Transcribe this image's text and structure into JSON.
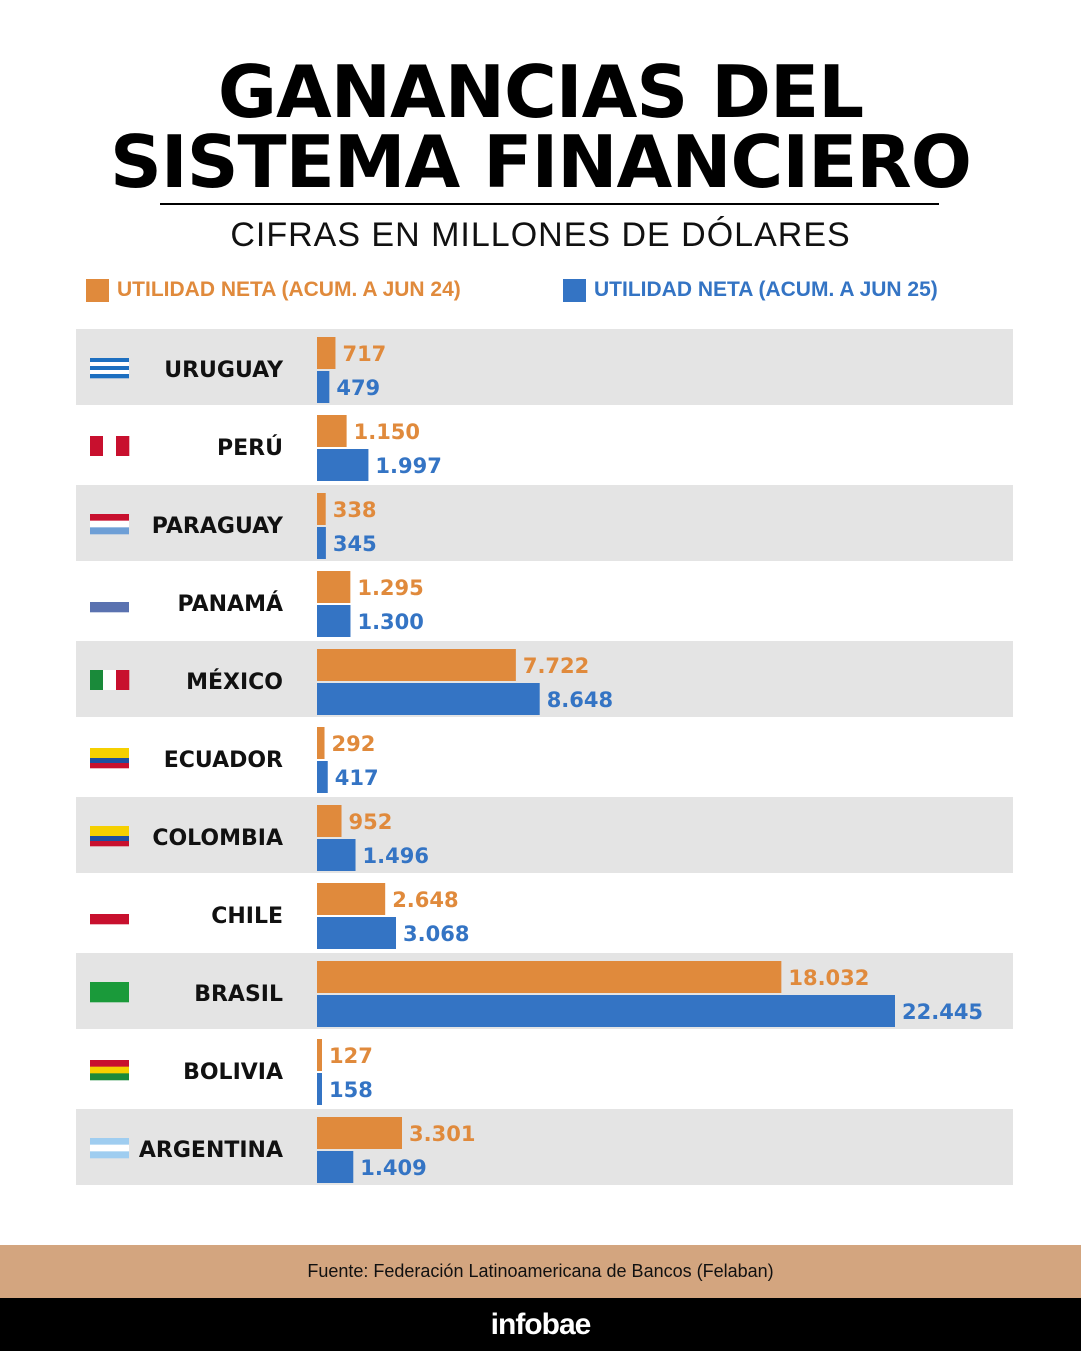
{
  "title_line1": "GANANCIAS DEL",
  "title_line2": "SISTEMA FINANCIERO",
  "subtitle": "CIFRAS EN MILLONES DE DÓLARES",
  "source": "Fuente: Federación Latinoamericana de Bancos (Felaban)",
  "brand": "infobae",
  "colors": {
    "orange": "#e08a3c",
    "blue": "#3474c4",
    "row_shade": "#e4e4e4"
  },
  "chart_data": {
    "type": "bar",
    "orientation": "horizontal",
    "legend_position": "top",
    "grid": false,
    "categories": [
      "URUGUAY",
      "PERÚ",
      "PARAGUAY",
      "PANAMÁ",
      "MÉXICO",
      "ECUADOR",
      "COLOMBIA",
      "CHILE",
      "BRASIL",
      "BOLIVIA",
      "ARGENTINA"
    ],
    "series": [
      {
        "name": "UTILIDAD NETA (ACUM. A JUN 24)",
        "color": "#e08a3c",
        "values": [
          717,
          1150,
          338,
          1295,
          7722,
          292,
          952,
          2648,
          18032,
          127,
          3301
        ],
        "labels": [
          "717",
          "1.150",
          "338",
          "1.295",
          "7.722",
          "292",
          "952",
          "2.648",
          "18.032",
          "127",
          "3.301"
        ]
      },
      {
        "name": "UTILIDAD NETA (ACUM. A JUN 25)",
        "color": "#3474c4",
        "values": [
          479,
          1997,
          345,
          1300,
          8648,
          417,
          1496,
          3068,
          22445,
          158,
          1409
        ],
        "labels": [
          "479",
          "1.997",
          "345",
          "1.300",
          "8.648",
          "417",
          "1.496",
          "3.068",
          "22.445",
          "158",
          "1.409"
        ]
      }
    ],
    "flags": [
      {
        "dir": "h",
        "stripes": [
          "#1d6fc0",
          "#ffffff",
          "#1d6fc0",
          "#ffffff",
          "#1d6fc0"
        ]
      },
      {
        "dir": "v",
        "stripes": [
          "#c8102e",
          "#ffffff",
          "#c8102e"
        ]
      },
      {
        "dir": "h",
        "stripes": [
          "#c8102e",
          "#ffffff",
          "#6e9fd6"
        ]
      },
      {
        "dir": "h",
        "stripes": [
          "#ffffff",
          "#5a72b0"
        ]
      },
      {
        "dir": "v",
        "stripes": [
          "#1a8a3a",
          "#ffffff",
          "#c8102e"
        ]
      },
      {
        "dir": "h",
        "stripes": [
          "#f5d000",
          "#f5d000",
          "#1d4fa0",
          "#c8102e"
        ]
      },
      {
        "dir": "h",
        "stripes": [
          "#f5d000",
          "#f5d000",
          "#1d4fa0",
          "#c8102e"
        ]
      },
      {
        "dir": "h",
        "stripes": [
          "#ffffff",
          "#c8102e"
        ]
      },
      {
        "dir": "h",
        "stripes": [
          "#1a9a3a"
        ]
      },
      {
        "dir": "h",
        "stripes": [
          "#c8102e",
          "#f5d000",
          "#1a8a3a"
        ]
      },
      {
        "dir": "h",
        "stripes": [
          "#9fcdf0",
          "#ffffff",
          "#9fcdf0"
        ]
      }
    ]
  }
}
